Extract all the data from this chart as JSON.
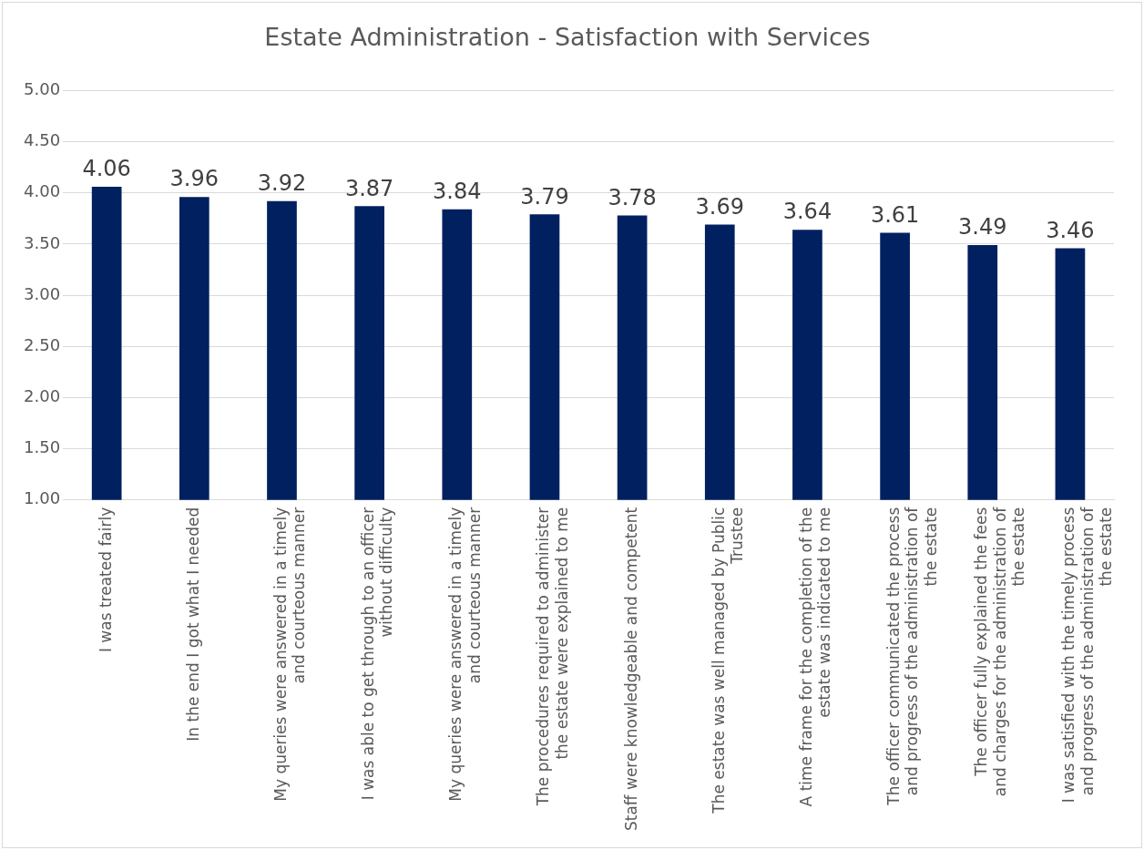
{
  "chart_data": {
    "type": "bar",
    "title": "Estate Administration - Satisfaction with Services",
    "categories": [
      "I was treated fairly",
      "In the end I got what I needed",
      "My queries were answered in a timely and courteous manner",
      "I was able to get through to an officer without difficulty",
      "My queries were answered in a timely and courteous manner",
      "The procedures required to administer the estate were explained to me",
      "Staff were knowledgeable and competent",
      "The estate was well managed by Public Trustee",
      "A time frame for the completion of the estate was indicated to me",
      "The officer communicated the process and progress of the administration of the estate",
      "The officer fully explained the fees and charges for the administration of the estate",
      "I was satisfied with the timely process and progress of the administration of the estate"
    ],
    "values": [
      4.06,
      3.96,
      3.92,
      3.87,
      3.84,
      3.79,
      3.78,
      3.69,
      3.64,
      3.61,
      3.49,
      3.46
    ],
    "color": "#002060",
    "ylim": [
      1,
      5
    ],
    "yticks": [
      {
        "value": 1,
        "label": "1.00"
      },
      {
        "value": 1.5,
        "label": "1.50"
      },
      {
        "value": 2,
        "label": "2.00"
      },
      {
        "value": 2.5,
        "label": "2.50"
      },
      {
        "value": 3,
        "label": "3.00"
      },
      {
        "value": 3.5,
        "label": "3.50"
      },
      {
        "value": 4,
        "label": "4.00"
      },
      {
        "value": 4.5,
        "label": "4.50"
      },
      {
        "value": 5,
        "label": "5.00"
      }
    ],
    "grid": "y",
    "data_labels": true,
    "legend": false
  }
}
